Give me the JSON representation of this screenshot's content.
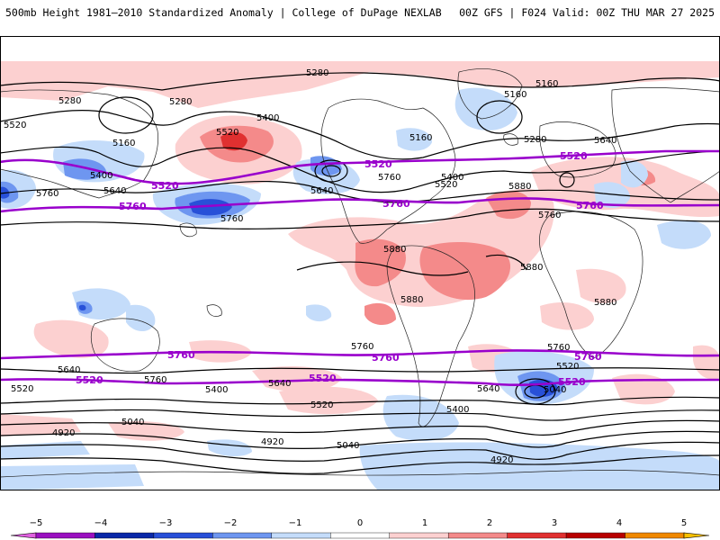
{
  "header": {
    "title_left": "500mb Height 1981–2010 Standardized Anomaly | College of DuPage NEXLAB",
    "title_right": "00Z GFS | F024 Valid: 00Z THU MAR 27 2025"
  },
  "colorbar": {
    "ticks": [
      {
        "label": "−5",
        "value": -5
      },
      {
        "label": "−4",
        "value": -4
      },
      {
        "label": "−3",
        "value": -3
      },
      {
        "label": "−2",
        "value": -2
      },
      {
        "label": "−1",
        "value": -1
      },
      {
        "label": "0",
        "value": 0
      },
      {
        "label": "1",
        "value": 1
      },
      {
        "label": "2",
        "value": 2
      },
      {
        "label": "3",
        "value": 3
      },
      {
        "label": "4",
        "value": 4
      },
      {
        "label": "5",
        "value": 5
      }
    ],
    "colors": [
      "#e060e0",
      "#9a10c0",
      "#0a28a8",
      "#2850d8",
      "#6e96f0",
      "#c4dcfa",
      "#ffffff",
      "#fcd0d0",
      "#f48a8a",
      "#e03030",
      "#b80000",
      "#f08800",
      "#f8c000"
    ]
  },
  "contour_labels": [
    {
      "text": "5280"
    },
    {
      "text": "5160"
    },
    {
      "text": "5520"
    },
    {
      "text": "5400"
    },
    {
      "text": "5640"
    },
    {
      "text": "5760"
    },
    {
      "text": "5880"
    },
    {
      "text": "5040"
    },
    {
      "text": "4920"
    }
  ],
  "highlight_contours": [
    "5520",
    "5760"
  ],
  "colors": {
    "height_contour": "#000000",
    "highlight_contour": "#9900cc",
    "coastline": "#222222",
    "positive_anomaly_light": "#fcd0d0",
    "positive_anomaly_mid": "#f48a8a",
    "positive_anomaly_strong": "#e03030",
    "negative_anomaly_light": "#c4dcfa",
    "negative_anomaly_mid": "#6e96f0",
    "negative_anomaly_strong": "#2850d8"
  }
}
